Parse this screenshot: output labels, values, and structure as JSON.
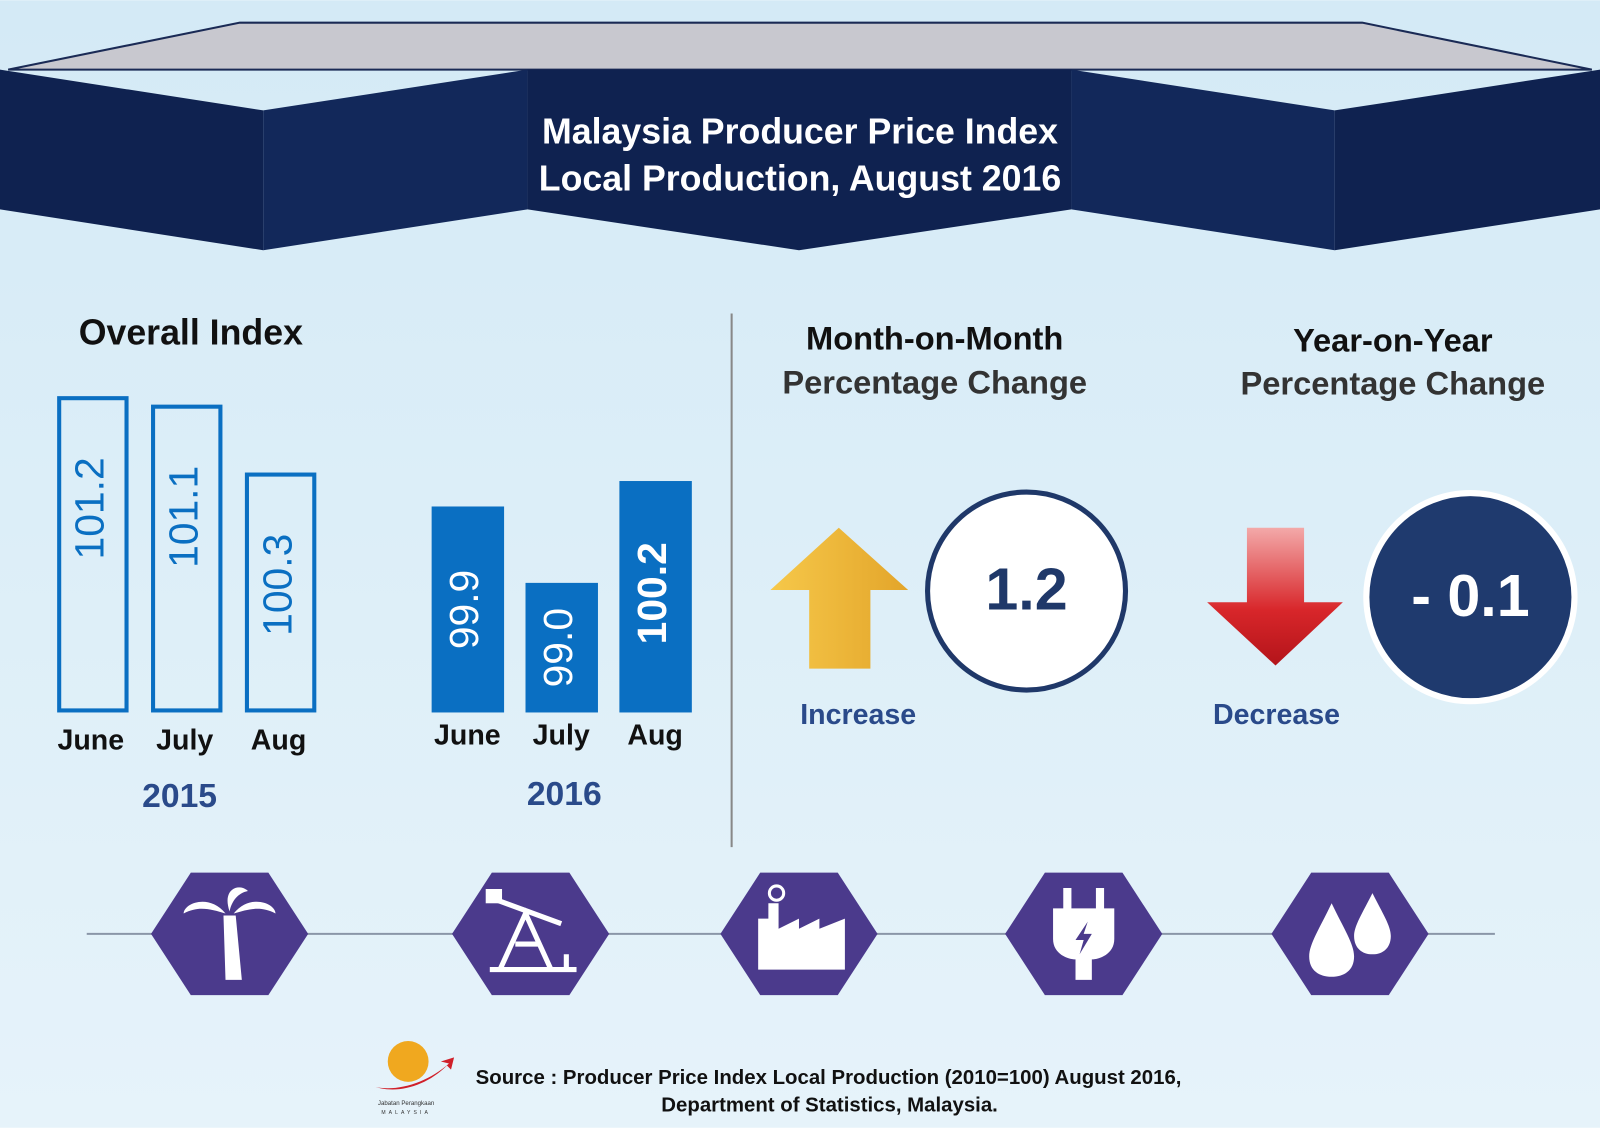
{
  "header": {
    "title_lines": [
      "Malaysia Producer Price Index",
      "Local Production, August 2016"
    ]
  },
  "overall_index": {
    "title": "Overall Index",
    "groups": [
      {
        "year": "2015",
        "categories": [
          "June",
          "July",
          "Aug"
        ],
        "values": [
          101.2,
          101.1,
          100.3
        ],
        "value_labels": [
          "101.2",
          "101.1",
          "100.3"
        ]
      },
      {
        "year": "2016",
        "categories": [
          "June",
          "July",
          "Aug"
        ],
        "values": [
          99.9,
          99.0,
          100.2
        ],
        "value_labels": [
          "99.9",
          "99.0",
          "100.2"
        ]
      }
    ]
  },
  "month_on_month": {
    "title": "Month-on-Month",
    "subtitle": "Percentage Change",
    "direction": "Increase",
    "value": 1.2
  },
  "year_on_year": {
    "title": "Year-on-Year",
    "subtitle": "Percentage Change",
    "direction": "Decrease",
    "value": -0.1,
    "value_label": "- 0.1"
  },
  "source": {
    "lines": [
      "Source : Producer Price Index Local Production (2010=100) August 2016,",
      "Department of Statistics, Malaysia."
    ]
  },
  "logo": {
    "name": "Jabatan Perangkaan",
    "country": "MALAYSIA"
  }
}
